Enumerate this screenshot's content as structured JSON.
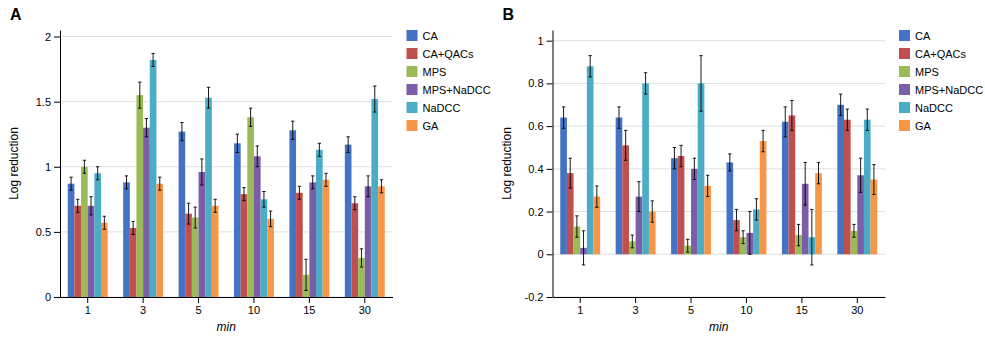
{
  "chart_data": [
    {
      "type": "bar",
      "title": "A",
      "x_label": "min",
      "y_label": "Log reduction",
      "categories": [
        "1",
        "3",
        "5",
        "10",
        "15",
        "30"
      ],
      "series": [
        {
          "name": "CA",
          "color": "#4472C4",
          "values": [
            0.87,
            0.88,
            1.27,
            1.18,
            1.28,
            1.17
          ],
          "errors": [
            0.05,
            0.05,
            0.07,
            0.07,
            0.07,
            0.06
          ]
        },
        {
          "name": "CA+QACs",
          "color": "#C0504D",
          "values": [
            0.7,
            0.53,
            0.64,
            0.79,
            0.8,
            0.72
          ],
          "errors": [
            0.05,
            0.05,
            0.08,
            0.05,
            0.05,
            0.05
          ]
        },
        {
          "name": "MPS",
          "color": "#9BBB59",
          "values": [
            1.0,
            1.55,
            0.61,
            1.38,
            0.17,
            0.3
          ],
          "errors": [
            0.05,
            0.1,
            0.08,
            0.07,
            0.12,
            0.07
          ]
        },
        {
          "name": "MPS+NaDCC",
          "color": "#7B5EA7",
          "values": [
            0.7,
            1.3,
            0.96,
            1.08,
            0.88,
            0.85
          ],
          "errors": [
            0.07,
            0.07,
            0.1,
            0.08,
            0.05,
            0.08
          ]
        },
        {
          "name": "NaDCC",
          "color": "#4BACC6",
          "values": [
            0.95,
            1.82,
            1.53,
            0.75,
            1.13,
            1.52
          ],
          "errors": [
            0.05,
            0.05,
            0.08,
            0.06,
            0.05,
            0.1
          ]
        },
        {
          "name": "GA",
          "color": "#F79646",
          "values": [
            0.57,
            0.87,
            0.7,
            0.6,
            0.9,
            0.85
          ],
          "errors": [
            0.05,
            0.05,
            0.05,
            0.06,
            0.05,
            0.05
          ]
        }
      ],
      "ylim": [
        0,
        2.05
      ],
      "yticks": [
        0,
        0.5,
        1,
        1.5,
        2
      ],
      "grid": true,
      "legend": "right"
    },
    {
      "type": "bar",
      "title": "B",
      "x_label": "min",
      "y_label": "Log reduction",
      "categories": [
        "1",
        "3",
        "5",
        "10",
        "15",
        "30"
      ],
      "series": [
        {
          "name": "CA",
          "color": "#4472C4",
          "values": [
            0.64,
            0.64,
            0.45,
            0.43,
            0.62,
            0.7
          ],
          "errors": [
            0.05,
            0.05,
            0.05,
            0.04,
            0.07,
            0.05
          ]
        },
        {
          "name": "CA+QACs",
          "color": "#C0504D",
          "values": [
            0.38,
            0.51,
            0.46,
            0.16,
            0.65,
            0.63
          ],
          "errors": [
            0.07,
            0.07,
            0.05,
            0.05,
            0.07,
            0.05
          ]
        },
        {
          "name": "MPS",
          "color": "#9BBB59",
          "values": [
            0.13,
            0.06,
            0.04,
            0.08,
            0.09,
            0.11
          ],
          "errors": [
            0.05,
            0.03,
            0.03,
            0.03,
            0.05,
            0.03
          ]
        },
        {
          "name": "MPS+NaDCC",
          "color": "#7B5EA7",
          "values": [
            0.03,
            0.27,
            0.4,
            0.1,
            0.33,
            0.37
          ],
          "errors": [
            0.08,
            0.07,
            0.05,
            0.1,
            0.1,
            0.08
          ]
        },
        {
          "name": "NaDCC",
          "color": "#4BACC6",
          "values": [
            0.88,
            0.8,
            0.8,
            0.21,
            0.08,
            0.63
          ],
          "errors": [
            0.05,
            0.05,
            0.13,
            0.05,
            0.13,
            0.05
          ]
        },
        {
          "name": "GA",
          "color": "#F79646",
          "values": [
            0.27,
            0.2,
            0.32,
            0.53,
            0.38,
            0.35
          ],
          "errors": [
            0.05,
            0.05,
            0.05,
            0.05,
            0.05,
            0.07
          ]
        }
      ],
      "ylim": [
        -0.2,
        1.05
      ],
      "yticks": [
        -0.2,
        0,
        0.2,
        0.4,
        0.6,
        0.8,
        1
      ],
      "grid": true,
      "legend": "right"
    }
  ]
}
